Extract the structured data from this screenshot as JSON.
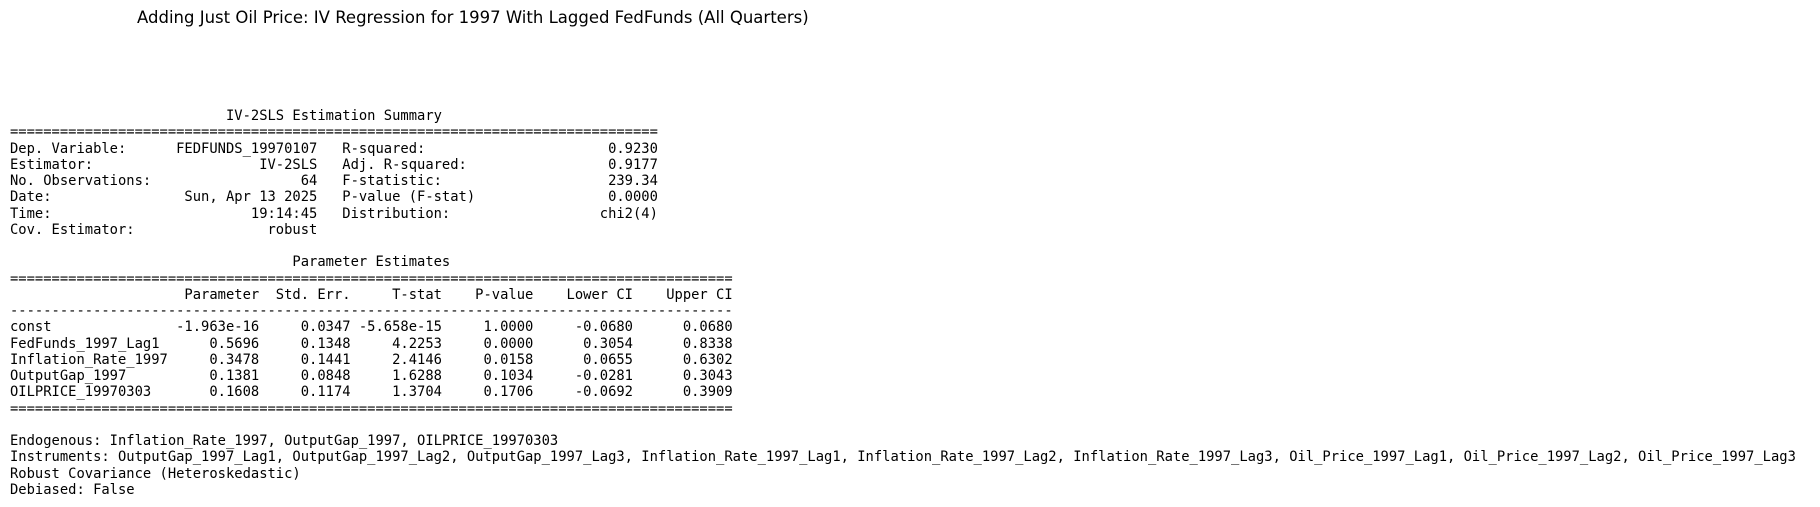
{
  "title": "Adding Just Oil Price: IV Regression for 1997 With Lagged FedFunds (All Quarters)",
  "summary_lines": [
    "                          IV-2SLS Estimation Summary",
    "==============================================================================",
    "Dep. Variable:      FEDFUNDS_19970107   R-squared:                      0.9230",
    "Estimator:                    IV-2SLS   Adj. R-squared:                 0.9177",
    "No. Observations:                  64   F-statistic:                    239.34",
    "Date:                Sun, Apr 13 2025   P-value (F-stat)                0.0000",
    "Time:                        19:14:45   Distribution:                  chi2(4)",
    "Cov. Estimator:                robust",
    "",
    "                                  Parameter Estimates",
    "=======================================================================================",
    "                     Parameter  Std. Err.     T-stat    P-value    Lower CI    Upper CI",
    "---------------------------------------------------------------------------------------",
    "const               -1.963e-16     0.0347 -5.658e-15     1.0000     -0.0680      0.0680",
    "FedFunds_1997_Lag1      0.5696     0.1348     4.2253     0.0000      0.3054      0.8338",
    "Inflation_Rate_1997     0.3478     0.1441     2.4146     0.0158      0.0655      0.6302",
    "OutputGap_1997          0.1381     0.0848     1.6288     0.1034     -0.0281      0.3043",
    "OILPRICE_19970303       0.1608     0.1174     1.3704     0.1706     -0.0692      0.3909",
    "=======================================================================================",
    "",
    "Endogenous: Inflation_Rate_1997, OutputGap_1997, OILPRICE_19970303",
    "Instruments: OutputGap_1997_Lag1, OutputGap_1997_Lag2, OutputGap_1997_Lag3, Inflation_Rate_1997_Lag1, Inflation_Rate_1997_Lag2, Inflation_Rate_1997_Lag3, Oil_Price_1997_Lag1, Oil_Price_1997_Lag2, Oil_Price_1997_Lag3",
    "Robust Covariance (Heteroskedastic)",
    "Debiased: False"
  ]
}
